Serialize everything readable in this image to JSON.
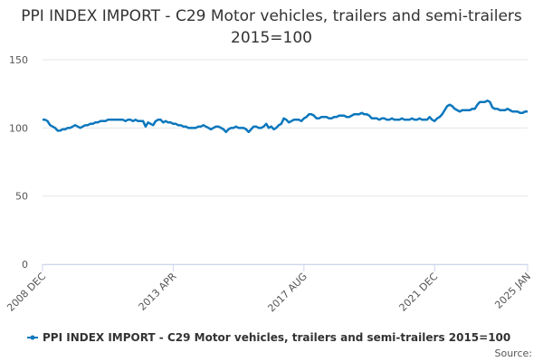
{
  "chart_data": {
    "type": "line",
    "title": "PPI INDEX IMPORT - C29 Motor vehicles, trailers and semi-trailers 2015=100",
    "source": "Source:",
    "categories": [
      "2008 DEC",
      null,
      null,
      null,
      null,
      null,
      null,
      null,
      null,
      null,
      null,
      null,
      null,
      null,
      null,
      null,
      null,
      null,
      null,
      null,
      null,
      null,
      null,
      null,
      null,
      null,
      null,
      null,
      null,
      null,
      null,
      null,
      null,
      null,
      null,
      null,
      null,
      null,
      null,
      null,
      null,
      null,
      null,
      null,
      null,
      null,
      null,
      null,
      null,
      null,
      null,
      null,
      "2013 APR",
      null,
      null,
      null,
      null,
      null,
      null,
      null,
      null,
      null,
      null,
      null,
      null,
      null,
      null,
      null,
      null,
      null,
      null,
      null,
      null,
      null,
      null,
      null,
      null,
      null,
      null,
      null,
      null,
      null,
      null,
      null,
      null,
      null,
      null,
      null,
      null,
      null,
      null,
      null,
      null,
      null,
      null,
      null,
      null,
      null,
      null,
      null,
      null,
      null,
      null,
      null,
      "2017 AUG",
      null,
      null,
      null,
      null,
      null,
      null,
      null,
      null,
      null,
      null,
      null,
      null,
      null,
      null,
      null,
      null,
      null,
      null,
      null,
      null,
      null,
      null,
      null,
      null,
      null,
      null,
      null,
      null,
      null,
      null,
      null,
      null,
      null,
      null,
      null,
      null,
      null,
      null,
      null,
      null,
      null,
      null,
      null,
      null,
      null,
      null,
      null,
      null,
      null,
      null,
      null,
      "2021 DEC",
      null,
      null,
      null,
      null,
      null,
      null,
      null,
      null,
      null,
      null,
      null,
      null,
      null,
      null,
      null,
      null,
      null,
      null,
      null,
      null,
      null,
      null,
      null,
      null,
      null,
      null,
      null,
      null,
      null,
      null,
      null,
      null,
      null,
      null,
      null,
      null,
      "2025 JAN"
    ],
    "series": [
      {
        "name": "PPI INDEX IMPORT - C29 Motor vehicles, trailers and semi-trailers 2015=100",
        "color": "#0a77bd",
        "values": [
          106,
          106,
          105,
          102,
          101,
          100,
          98,
          98,
          99,
          99,
          100,
          100,
          101,
          102,
          101,
          100,
          101,
          102,
          102,
          103,
          103,
          104,
          104,
          105,
          105,
          105,
          106,
          106,
          106,
          106,
          106,
          106,
          106,
          105,
          106,
          106,
          105,
          106,
          105,
          105,
          105,
          101,
          104,
          103,
          102,
          105,
          106,
          106,
          104,
          105,
          104,
          104,
          103,
          103,
          102,
          102,
          101,
          101,
          100,
          100,
          100,
          100,
          101,
          101,
          102,
          101,
          100,
          99,
          100,
          101,
          101,
          100,
          99,
          97,
          99,
          100,
          100,
          101,
          100,
          100,
          100,
          99,
          97,
          99,
          101,
          101,
          100,
          100,
          101,
          103,
          100,
          101,
          99,
          100,
          102,
          103,
          107,
          106,
          104,
          105,
          106,
          106,
          106,
          105,
          107,
          108,
          110,
          110,
          109,
          107,
          107,
          108,
          108,
          108,
          107,
          107,
          108,
          108,
          109,
          109,
          109,
          108,
          108,
          109,
          110,
          110,
          110,
          111,
          110,
          110,
          109,
          107,
          107,
          107,
          106,
          107,
          107,
          106,
          106,
          107,
          106,
          106,
          106,
          107,
          106,
          106,
          106,
          107,
          106,
          106,
          107,
          106,
          106,
          106,
          108,
          106,
          105,
          107,
          108,
          110,
          113,
          116,
          117,
          116,
          114,
          113,
          112,
          113,
          113,
          113,
          113,
          114,
          114,
          117,
          119,
          119,
          119,
          120,
          119,
          115,
          114,
          114,
          113,
          113,
          113,
          114,
          113,
          112,
          112,
          112,
          111,
          111,
          112,
          112
        ]
      }
    ],
    "ylim": [
      0,
      150
    ],
    "yticks": [
      0,
      50,
      100,
      150
    ],
    "grid": true
  }
}
